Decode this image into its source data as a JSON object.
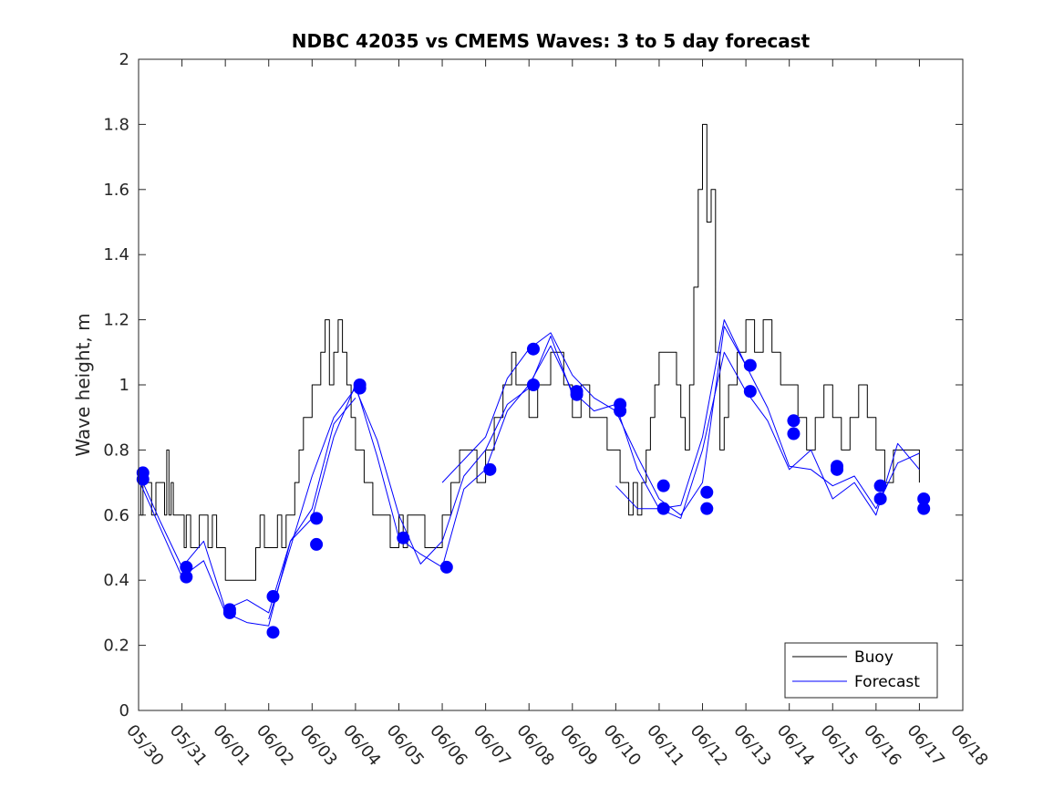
{
  "chart_data": {
    "type": "line",
    "title": "NDBC 42035 vs CMEMS Waves: 3 to 5 day forecast",
    "xlabel": "",
    "ylabel": "Wave height, m",
    "xlim": [
      "05/30",
      "06/18"
    ],
    "ylim": [
      0,
      2
    ],
    "x_tick_labels": [
      "05/30",
      "05/31",
      "06/01",
      "06/02",
      "06/03",
      "06/04",
      "06/05",
      "06/06",
      "06/07",
      "06/08",
      "06/09",
      "06/10",
      "06/11",
      "06/12",
      "06/13",
      "06/14",
      "06/15",
      "06/16",
      "06/17",
      "06/18"
    ],
    "y_tick_labels": [
      "0",
      "0.2",
      "0.4",
      "0.6",
      "0.8",
      "1",
      "1.2",
      "1.4",
      "1.6",
      "1.8",
      "2"
    ],
    "y_ticks": [
      0,
      0.2,
      0.4,
      0.6,
      0.8,
      1,
      1.2,
      1.4,
      1.6,
      1.8,
      2
    ],
    "grid": false,
    "legend_position": "bottom-right",
    "colors": {
      "buoy": "#000000",
      "forecast": "#0000ff",
      "axes": "#262626"
    },
    "series": [
      {
        "name": "Buoy",
        "color": "#000000",
        "x_days": [
          0,
          0.05,
          0.1,
          0.2,
          0.3,
          0.4,
          0.5,
          0.6,
          0.65,
          0.7,
          0.75,
          0.8,
          0.9,
          1.0,
          1.05,
          1.1,
          1.2,
          1.3,
          1.4,
          1.5,
          1.6,
          1.7,
          1.8,
          1.9,
          2.0,
          2.2,
          2.4,
          2.6,
          2.7,
          2.8,
          2.9,
          3.0,
          3.1,
          3.2,
          3.3,
          3.4,
          3.5,
          3.6,
          3.7,
          3.8,
          3.9,
          4.0,
          4.1,
          4.2,
          4.3,
          4.4,
          4.5,
          4.6,
          4.7,
          4.8,
          4.9,
          5.0,
          5.2,
          5.4,
          5.6,
          5.8,
          6.0,
          6.1,
          6.2,
          6.4,
          6.6,
          6.8,
          7.0,
          7.2,
          7.4,
          7.6,
          7.8,
          8.0,
          8.2,
          8.4,
          8.5,
          8.6,
          8.7,
          8.8,
          9.0,
          9.2,
          9.4,
          9.5,
          9.6,
          9.8,
          10.0,
          10.2,
          10.4,
          10.6,
          10.8,
          11.0,
          11.1,
          11.2,
          11.3,
          11.4,
          11.5,
          11.6,
          11.7,
          11.8,
          11.9,
          12.0,
          12.2,
          12.4,
          12.5,
          12.6,
          12.65,
          12.7,
          12.8,
          12.9,
          13.0,
          13.1,
          13.2,
          13.3,
          13.4,
          13.5,
          13.6,
          13.8,
          14.0,
          14.2,
          14.4,
          14.6,
          14.8,
          15.0,
          15.2,
          15.4,
          15.6,
          15.8,
          16.0,
          16.2,
          16.4,
          16.6,
          16.8,
          17.0,
          17.2,
          17.4,
          17.6,
          17.8,
          18.0
        ],
        "values": [
          0.7,
          0.6,
          0.7,
          0.7,
          0.6,
          0.7,
          0.7,
          0.6,
          0.8,
          0.6,
          0.7,
          0.6,
          0.6,
          0.6,
          0.5,
          0.6,
          0.5,
          0.5,
          0.6,
          0.6,
          0.5,
          0.6,
          0.5,
          0.5,
          0.4,
          0.4,
          0.4,
          0.4,
          0.5,
          0.6,
          0.5,
          0.5,
          0.5,
          0.6,
          0.5,
          0.6,
          0.6,
          0.7,
          0.8,
          0.9,
          0.9,
          1.0,
          1.0,
          1.1,
          1.2,
          1.0,
          1.1,
          1.2,
          1.1,
          1.0,
          0.9,
          0.8,
          0.7,
          0.6,
          0.6,
          0.5,
          0.6,
          0.5,
          0.6,
          0.6,
          0.5,
          0.5,
          0.6,
          0.7,
          0.8,
          0.8,
          0.7,
          0.8,
          0.9,
          1.0,
          1.0,
          1.1,
          1.0,
          1.0,
          0.9,
          1.0,
          1.0,
          1.1,
          1.1,
          1.0,
          0.9,
          1.0,
          0.9,
          0.9,
          0.8,
          0.8,
          0.7,
          0.7,
          0.6,
          0.7,
          0.6,
          0.7,
          0.8,
          0.9,
          1.0,
          1.1,
          1.1,
          1.0,
          0.9,
          0.8,
          0.8,
          1.0,
          1.3,
          1.6,
          1.8,
          1.5,
          1.6,
          1.1,
          0.8,
          0.9,
          1.0,
          1.1,
          1.2,
          1.1,
          1.2,
          1.1,
          1.0,
          1.0,
          0.9,
          0.8,
          0.9,
          1.0,
          0.9,
          0.8,
          0.9,
          1.0,
          0.9,
          0.8,
          0.7,
          0.8,
          0.8,
          0.8,
          0.7
        ]
      },
      {
        "name": "Forecast",
        "color": "#0000ff",
        "x_days": [
          0,
          0.5,
          1.0,
          1.5,
          2.0,
          2.5,
          3.0,
          3.5,
          4.0,
          4.5,
          5.0,
          5.5,
          6.0,
          6.5,
          7.0,
          7.5,
          8.0,
          8.5,
          9.0,
          9.5,
          10.0,
          10.5,
          11.0,
          11.5,
          12.0,
          12.5,
          13.0,
          13.5,
          14.0,
          14.5,
          15.0,
          15.5,
          16.0,
          16.5,
          17.0,
          17.5,
          18.0
        ],
        "values": [
          0.73,
          0.58,
          0.44,
          0.52,
          0.31,
          0.34,
          0.3,
          0.52,
          0.59,
          0.84,
          1.0,
          0.78,
          0.53,
          0.48,
          0.44,
          0.68,
          0.74,
          0.92,
          1.0,
          1.12,
          0.98,
          0.92,
          0.94,
          0.74,
          0.62,
          0.63,
          0.84,
          1.2,
          1.06,
          0.93,
          0.75,
          0.74,
          0.69,
          0.72,
          0.62,
          0.76,
          0.79
        ]
      }
    ],
    "forecast_extra_lines": [
      {
        "x_days": [
          0,
          0.5,
          1.0,
          1.5,
          2.0,
          2.5,
          3.0,
          3.5,
          4.0,
          4.5,
          5.0
        ],
        "values": [
          0.71,
          0.56,
          0.41,
          0.46,
          0.3,
          0.27,
          0.26,
          0.52,
          0.62,
          0.88,
          0.96
        ]
      },
      {
        "x_days": [
          3.0,
          3.5,
          4.0,
          4.5,
          5.0,
          5.5,
          6.0,
          6.5,
          7.0,
          7.5,
          8.0,
          8.5,
          9.0,
          9.5,
          10.0
        ],
        "values": [
          0.28,
          0.5,
          0.72,
          0.9,
          0.99,
          0.83,
          0.6,
          0.45,
          0.52,
          0.72,
          0.8,
          0.94,
          0.99,
          1.15,
          0.97
        ]
      },
      {
        "x_days": [
          7.0,
          7.5,
          8.0,
          8.5,
          9.0,
          9.5,
          10.0,
          10.5,
          11.0,
          11.5,
          12.0,
          12.5,
          13.0,
          13.5,
          14.0
        ],
        "values": [
          0.7,
          0.77,
          0.84,
          1.02,
          1.11,
          1.16,
          1.03,
          0.96,
          0.92,
          0.78,
          0.65,
          0.6,
          0.7,
          1.18,
          1.06
        ]
      },
      {
        "x_days": [
          11.0,
          11.5,
          12.0,
          12.5,
          13.0,
          13.5,
          14.0,
          14.5,
          15.0,
          15.5,
          16.0,
          16.5,
          17.0,
          17.5,
          18.0
        ],
        "values": [
          0.69,
          0.62,
          0.62,
          0.59,
          0.8,
          1.1,
          0.98,
          0.89,
          0.74,
          0.8,
          0.65,
          0.7,
          0.6,
          0.82,
          0.74
        ]
      }
    ],
    "forecast_markers": [
      {
        "x_day": 0.1,
        "value": 0.73
      },
      {
        "x_day": 0.1,
        "value": 0.71
      },
      {
        "x_day": 1.1,
        "value": 0.44
      },
      {
        "x_day": 1.1,
        "value": 0.41
      },
      {
        "x_day": 2.1,
        "value": 0.31
      },
      {
        "x_day": 2.1,
        "value": 0.3
      },
      {
        "x_day": 3.1,
        "value": 0.35
      },
      {
        "x_day": 3.1,
        "value": 0.24
      },
      {
        "x_day": 4.1,
        "value": 0.59
      },
      {
        "x_day": 4.1,
        "value": 0.51
      },
      {
        "x_day": 5.1,
        "value": 1.0
      },
      {
        "x_day": 5.1,
        "value": 0.99
      },
      {
        "x_day": 6.1,
        "value": 0.53
      },
      {
        "x_day": 7.1,
        "value": 0.44
      },
      {
        "x_day": 8.1,
        "value": 0.74
      },
      {
        "x_day": 9.1,
        "value": 1.11
      },
      {
        "x_day": 9.1,
        "value": 1.0
      },
      {
        "x_day": 10.1,
        "value": 0.98
      },
      {
        "x_day": 10.1,
        "value": 0.97
      },
      {
        "x_day": 11.1,
        "value": 0.94
      },
      {
        "x_day": 11.1,
        "value": 0.92
      },
      {
        "x_day": 12.1,
        "value": 0.69
      },
      {
        "x_day": 12.1,
        "value": 0.62
      },
      {
        "x_day": 13.1,
        "value": 0.67
      },
      {
        "x_day": 13.1,
        "value": 0.62
      },
      {
        "x_day": 14.1,
        "value": 1.06
      },
      {
        "x_day": 14.1,
        "value": 0.98
      },
      {
        "x_day": 15.1,
        "value": 0.89
      },
      {
        "x_day": 15.1,
        "value": 0.85
      },
      {
        "x_day": 16.1,
        "value": 0.75
      },
      {
        "x_day": 16.1,
        "value": 0.74
      },
      {
        "x_day": 17.1,
        "value": 0.69
      },
      {
        "x_day": 17.1,
        "value": 0.65
      },
      {
        "x_day": 18.1,
        "value": 0.65
      },
      {
        "x_day": 18.1,
        "value": 0.62
      }
    ],
    "legend": [
      "Buoy",
      "Forecast"
    ]
  }
}
